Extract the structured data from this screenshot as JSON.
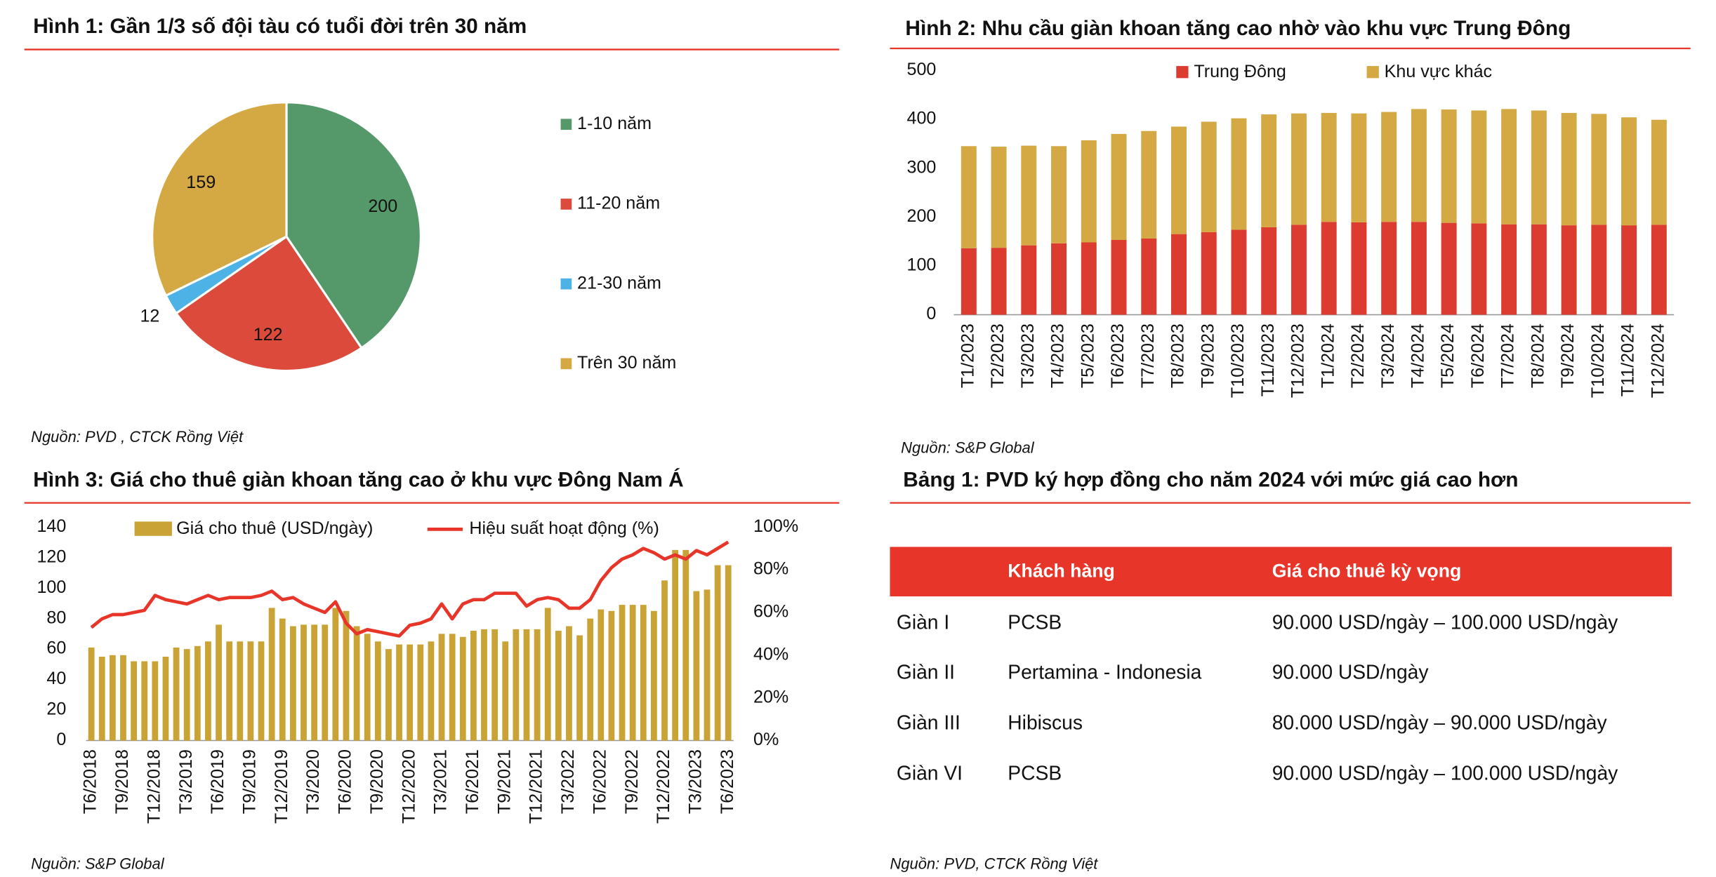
{
  "chart_data": [
    {
      "type": "pie",
      "title": "Hình 1: Gần 1/3 số đội tàu có tuổi đời trên 30 năm",
      "categories": [
        "1-10 năm",
        "11-20 năm",
        "21-30 năm",
        "Trên 30 năm"
      ],
      "values": [
        200,
        122,
        12,
        159
      ],
      "colors": [
        "#55996a",
        "#dc4a3c",
        "#4db3e6",
        "#d4a843"
      ],
      "legend": "right",
      "source": "Nguồn: PVD , CTCK Rồng Việt"
    },
    {
      "type": "bar",
      "stacked": true,
      "title": "Hình 2: Nhu cầu giàn khoan tăng cao nhờ vào khu vực Trung Đông",
      "categories": [
        "T1/2023",
        "T2/2023",
        "T3/2023",
        "T4/2023",
        "T5/2023",
        "T6/2023",
        "T7/2023",
        "T8/2023",
        "T9/2023",
        "T10/2023",
        "T11/2023",
        "T12/2023",
        "T1/2024",
        "T2/2024",
        "T3/2024",
        "T4/2024",
        "T5/2024",
        "T6/2024",
        "T7/2024",
        "T8/2024",
        "T9/2024",
        "T10/2024",
        "T11/2024",
        "T12/2024"
      ],
      "series": [
        {
          "name": "Trung Đông",
          "color": "#dc3b30",
          "values": [
            136,
            137,
            142,
            146,
            148,
            153,
            156,
            165,
            169,
            174,
            179,
            184,
            190,
            189,
            190,
            190,
            188,
            187,
            185,
            185,
            183,
            184,
            183,
            184
          ]
        },
        {
          "name": "Khu vực khác",
          "color": "#d4a843",
          "values": [
            209,
            207,
            204,
            199,
            209,
            217,
            220,
            220,
            226,
            228,
            231,
            228,
            223,
            223,
            225,
            231,
            232,
            231,
            236,
            233,
            230,
            227,
            221,
            215
          ]
        }
      ],
      "ylim": [
        0,
        500
      ],
      "yticks": [
        0,
        100,
        200,
        300,
        400,
        500
      ],
      "legend": "top",
      "source": "Nguồn: S&P Global"
    },
    {
      "type": "bar",
      "title": "Hình 3: Giá cho thuê giàn khoan tăng cao ở khu vực Đông Nam Á",
      "categories": [
        "T6/2018",
        null,
        null,
        "T9/2018",
        null,
        null,
        "T12/2018",
        null,
        null,
        "T3/2019",
        null,
        null,
        "T6/2019",
        null,
        null,
        "T9/2019",
        null,
        null,
        "T12/2019",
        null,
        null,
        "T3/2020",
        null,
        null,
        "T6/2020",
        null,
        null,
        "T9/2020",
        null,
        null,
        "T12/2020",
        null,
        null,
        "T3/2021",
        null,
        null,
        "T6/2021",
        null,
        null,
        "T9/2021",
        null,
        null,
        "T12/2021",
        null,
        null,
        "T3/2022",
        null,
        null,
        "T6/2022",
        null,
        null,
        "T9/2022",
        null,
        null,
        "T12/2022",
        null,
        null,
        "T3/2023",
        null,
        null,
        "T6/2023"
      ],
      "series": [
        {
          "name": "Giá cho thuê (USD/ngày)",
          "color": "#c9a336",
          "values": [
            61,
            55,
            56,
            56,
            52,
            52,
            52,
            55,
            61,
            60,
            62,
            65,
            76,
            65,
            65,
            65,
            65,
            87,
            80,
            75,
            76,
            76,
            76,
            87,
            85,
            75,
            70,
            65,
            60,
            63,
            63,
            63,
            65,
            70,
            70,
            68,
            72,
            73,
            73,
            65,
            73,
            73,
            73,
            87,
            72,
            75,
            69,
            80,
            86,
            85,
            89,
            89,
            89,
            85,
            105,
            125,
            125,
            98,
            99,
            115,
            115
          ]
        },
        {
          "name": "Hiệu suất hoạt động (%)",
          "type": "line",
          "axis": "y2",
          "color": "#e8352a",
          "values": [
            53,
            57,
            59,
            59,
            60,
            61,
            68,
            66,
            65,
            64,
            66,
            68,
            66,
            67,
            67,
            67,
            68,
            70,
            66,
            67,
            64,
            62,
            60,
            65,
            55,
            50,
            52,
            51,
            50,
            49,
            54,
            55,
            57,
            64,
            57,
            64,
            66,
            66,
            69,
            69,
            69,
            63,
            66,
            67,
            66,
            62,
            62,
            66,
            75,
            81,
            85,
            87,
            90,
            88,
            85,
            87,
            85,
            89,
            87,
            90,
            93
          ]
        }
      ],
      "ylim": [
        0,
        140
      ],
      "yticks": [
        0,
        20,
        40,
        60,
        80,
        100,
        120,
        140
      ],
      "y2lim": [
        0,
        100
      ],
      "y2ticks": [
        {
          "value": 0,
          "label": "0%"
        },
        {
          "value": 20,
          "label": "20%"
        },
        {
          "value": 40,
          "label": "40%"
        },
        {
          "value": 60,
          "label": "60%"
        },
        {
          "value": 80,
          "label": "80%"
        },
        {
          "value": 100,
          "label": "100%"
        }
      ],
      "legend": "top",
      "source": "Nguồn: S&P Global"
    }
  ],
  "table": {
    "title": "Bảng 1: PVD ký hợp đồng cho năm 2024 với mức giá cao hơn",
    "header": [
      "Khách hàng",
      "Giá cho thuê kỳ vọng"
    ],
    "rows": [
      [
        "Giàn I",
        "PCSB",
        "90.000 USD/ngày – 100.000 USD/ngày"
      ],
      [
        "Giàn II",
        "Pertamina - Indonesia",
        "90.000 USD/ngày"
      ],
      [
        "Giàn III",
        "Hibiscus",
        "80.000 USD/ngày – 90.000 USD/ngày"
      ],
      [
        "Giàn VI",
        "PCSB",
        "90.000 USD/ngày – 100.000 USD/ngày"
      ]
    ],
    "source": "Nguồn: PVD, CTCK Rồng Việt"
  }
}
